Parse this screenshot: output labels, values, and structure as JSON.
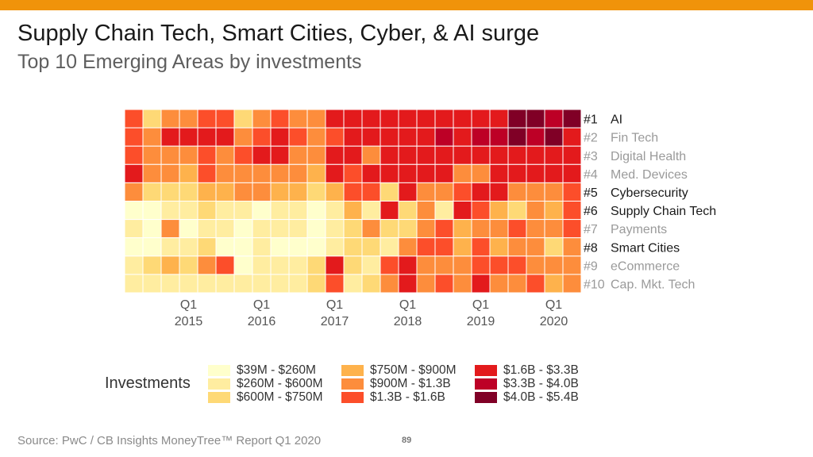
{
  "slide": {
    "title": "Supply Chain Tech, Smart Cities, Cyber, & AI surge",
    "subtitle": "Top 10 Emerging Areas by investments",
    "source": "Source: PwC / CB Insights MoneyTree™ Report Q1 2020",
    "page_number": "89",
    "accent_color": "#f0930a"
  },
  "chart_data": {
    "type": "heatmap",
    "rows": [
      {
        "rank": "#1",
        "name": "AI",
        "highlight": true
      },
      {
        "rank": "#2",
        "name": "Fin Tech",
        "highlight": false
      },
      {
        "rank": "#3",
        "name": "Digital Health",
        "highlight": false
      },
      {
        "rank": "#4",
        "name": "Med. Devices",
        "highlight": false
      },
      {
        "rank": "#5",
        "name": "Cybersecurity",
        "highlight": true
      },
      {
        "rank": "#6",
        "name": "Supply Chain Tech",
        "highlight": true
      },
      {
        "rank": "#7",
        "name": "Payments",
        "highlight": false
      },
      {
        "rank": "#8",
        "name": "Smart Cities",
        "highlight": true
      },
      {
        "rank": "#9",
        "name": "eCommerce",
        "highlight": false
      },
      {
        "rank": "#10",
        "name": "Cap. Mkt. Tech",
        "highlight": false
      }
    ],
    "x_ticks": [
      {
        "col": 3,
        "label1": "Q1",
        "label2": "2015"
      },
      {
        "col": 7,
        "label1": "Q1",
        "label2": "2016"
      },
      {
        "col": 11,
        "label1": "Q1",
        "label2": "2017"
      },
      {
        "col": 15,
        "label1": "Q1",
        "label2": "2018"
      },
      {
        "col": 19,
        "label1": "Q1",
        "label2": "2019"
      },
      {
        "col": 23,
        "label1": "Q1",
        "label2": "2020"
      }
    ],
    "legend": {
      "title": "Investments",
      "bins": [
        {
          "label": "$39M - $260M",
          "color": "#ffffcc"
        },
        {
          "label": "$260M - $600M",
          "color": "#ffeda0"
        },
        {
          "label": "$600M - $750M",
          "color": "#fed976"
        },
        {
          "label": "$750M - $900M",
          "color": "#feb24c"
        },
        {
          "label": "$900M - $1.3B",
          "color": "#fd8d3c"
        },
        {
          "label": "$1.3B - $1.6B",
          "color": "#fc4e2a"
        },
        {
          "label": "$1.6B - $3.3B",
          "color": "#e31a1c"
        },
        {
          "label": "$3.3B - $4.0B",
          "color": "#bd0026"
        },
        {
          "label": "$4.0B - $5.4B",
          "color": "#800026"
        }
      ]
    },
    "values": [
      [
        5,
        2,
        4,
        4,
        5,
        5,
        2,
        4,
        5,
        4,
        4,
        6,
        6,
        6,
        6,
        6,
        6,
        6,
        6,
        6,
        6,
        8,
        8,
        7,
        8
      ],
      [
        5,
        4,
        6,
        6,
        6,
        6,
        4,
        5,
        6,
        5,
        4,
        5,
        6,
        6,
        6,
        6,
        6,
        7,
        6,
        7,
        7,
        8,
        7,
        8,
        6
      ],
      [
        5,
        4,
        4,
        4,
        5,
        4,
        5,
        6,
        6,
        4,
        4,
        6,
        6,
        4,
        6,
        6,
        6,
        6,
        6,
        6,
        6,
        6,
        6,
        6,
        6
      ],
      [
        6,
        4,
        4,
        3,
        5,
        4,
        4,
        4,
        4,
        4,
        3,
        6,
        5,
        6,
        6,
        6,
        6,
        6,
        4,
        4,
        6,
        6,
        6,
        6,
        6
      ],
      [
        4,
        2,
        2,
        2,
        3,
        3,
        4,
        4,
        3,
        3,
        2,
        3,
        5,
        5,
        2,
        6,
        4,
        4,
        5,
        6,
        6,
        4,
        4,
        4,
        5
      ],
      [
        0,
        0,
        1,
        1,
        2,
        1,
        1,
        0,
        1,
        1,
        0,
        1,
        3,
        1,
        6,
        2,
        4,
        1,
        6,
        5,
        3,
        2,
        4,
        3,
        5
      ],
      [
        1,
        0,
        4,
        0,
        1,
        1,
        0,
        1,
        1,
        1,
        0,
        1,
        2,
        4,
        2,
        2,
        4,
        5,
        3,
        4,
        4,
        5,
        4,
        4,
        5
      ],
      [
        0,
        0,
        1,
        1,
        2,
        0,
        0,
        1,
        0,
        0,
        0,
        1,
        2,
        2,
        1,
        4,
        5,
        5,
        3,
        5,
        3,
        4,
        4,
        2,
        4
      ],
      [
        1,
        2,
        3,
        2,
        4,
        5,
        0,
        1,
        1,
        1,
        2,
        6,
        2,
        1,
        5,
        6,
        4,
        4,
        4,
        5,
        5,
        5,
        4,
        4,
        4
      ],
      [
        1,
        1,
        1,
        1,
        1,
        1,
        1,
        1,
        1,
        1,
        2,
        5,
        1,
        2,
        4,
        6,
        4,
        5,
        4,
        6,
        4,
        4,
        5,
        3,
        4
      ]
    ]
  }
}
